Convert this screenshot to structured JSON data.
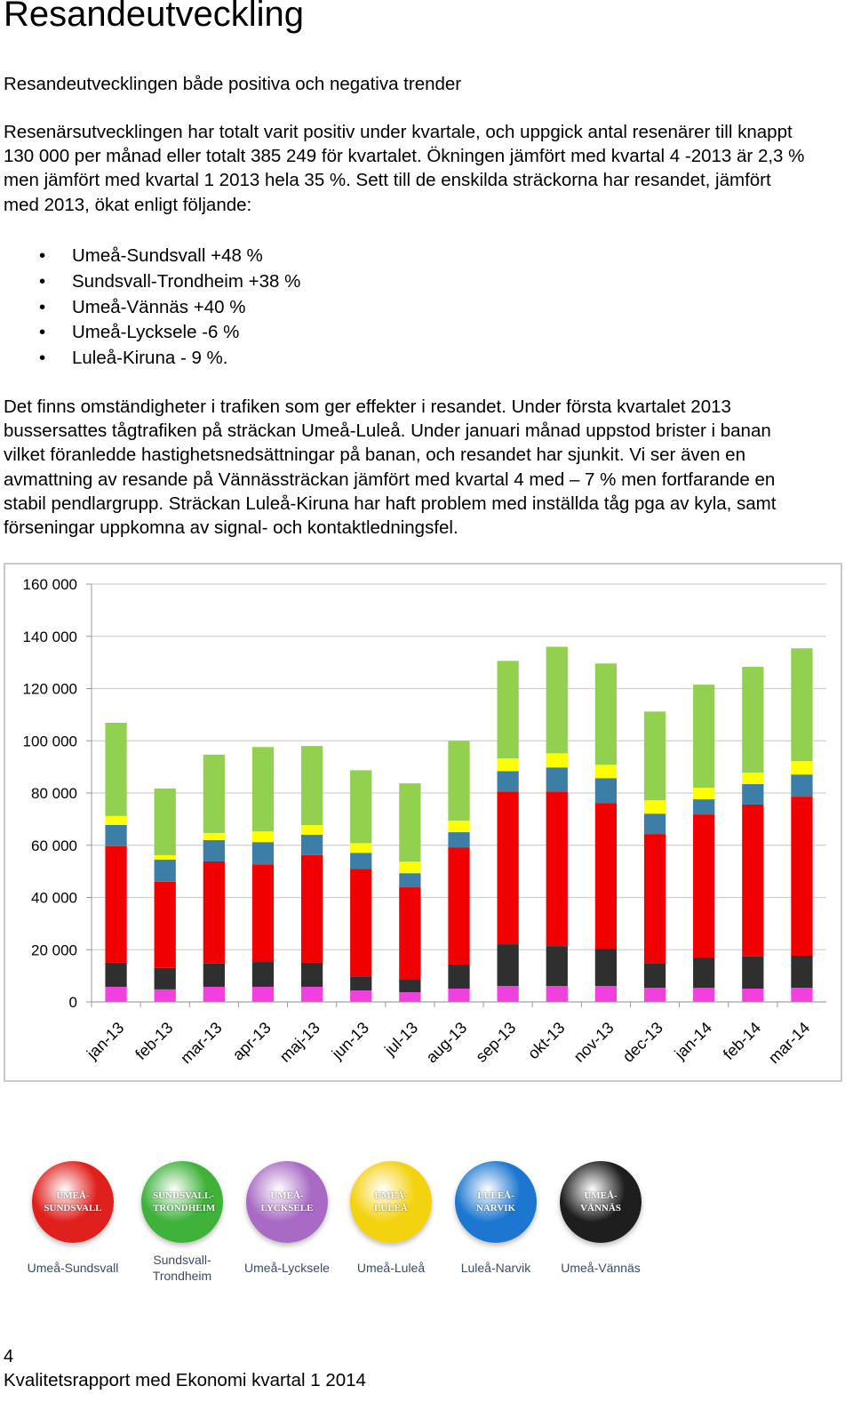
{
  "header": {
    "title": "Resandeutveckling",
    "subtitle": "Resandeutvecklingen både positiva och negativa trender"
  },
  "paragraphs": [
    "Resenärsutvecklingen har totalt varit positiv under kvartale, och  uppgick antal resenärer till knappt 130 000 per månad eller totalt 385 249 för kvartalet. Ökningen jämfört med kvartal 4 -2013 är 2,3 % men jämfört med kvartal 1 2013 hela 35 %. Sett till de enskilda sträckorna har resandet, jämfört med 2013, ökat enligt följande:",
    "Det finns omständigheter i trafiken som ger effekter i resandet. Under första kvartalet 2013 bussersattes tågtrafiken på sträckan Umeå-Luleå. Under januari månad uppstod brister i banan vilket föranledde hastighetsnedsättningar på banan, och resandet har sjunkit. Vi ser även en avmattning av resande på Vännässträckan jämfört med kvartal 4 med – 7 % men fortfarande en stabil pendlargrupp. Sträckan Luleå-Kiruna har haft problem med inställda tåg pga av kyla, samt förseningar uppkomna av signal- och kontaktledningsfel."
  ],
  "bullet_char": "•",
  "bullets": [
    "Umeå-Sundsvall +48 %",
    "Sundsvall-Trondheim +38 %",
    "Umeå-Vännäs +40 %",
    "Umeå-Lycksele -6 %",
    "Luleå-Kiruna - 9 %."
  ],
  "chart_data": {
    "type": "stacked_bar",
    "categories": [
      "jan-13",
      "feb-13",
      "mar-13",
      "apr-13",
      "maj-13",
      "jun-13",
      "jul-13",
      "aug-13",
      "sep-13",
      "okt-13",
      "nov-13",
      "dec-13",
      "jan-14",
      "feb-14",
      "mar-14"
    ],
    "series": [
      {
        "name": "Umeå-Lycksele",
        "color": "#f23fe0",
        "values": [
          5800,
          4800,
          5800,
          5800,
          5800,
          4400,
          3700,
          5100,
          6100,
          6100,
          6100,
          5400,
          5400,
          5100,
          5400
        ]
      },
      {
        "name": "Umeå-Vännäs",
        "color": "#2f2f2f",
        "values": [
          9200,
          8200,
          8900,
          9500,
          9200,
          5400,
          4800,
          9200,
          16000,
          15300,
          14300,
          9500,
          11600,
          12300,
          12300
        ]
      },
      {
        "name": "Umeå-Sundsvall",
        "color": "#f00000",
        "values": [
          44600,
          33000,
          39100,
          37400,
          41200,
          41200,
          35400,
          44900,
          58500,
          59200,
          55800,
          49400,
          54800,
          58200,
          60900
        ]
      },
      {
        "name": "Luleå-Narvik",
        "color": "#3c7ea6",
        "values": [
          8200,
          8500,
          8200,
          8500,
          7800,
          6100,
          5400,
          5800,
          7800,
          9200,
          9500,
          7800,
          5800,
          7800,
          8500
        ]
      },
      {
        "name": "Umeå-Luleå",
        "color": "#ffff00",
        "values": [
          3400,
          1700,
          2700,
          4100,
          3700,
          3700,
          4400,
          4400,
          4800,
          5400,
          5100,
          5100,
          4400,
          4400,
          5100
        ]
      },
      {
        "name": "Sundsvall-Trondheim",
        "color": "#92d050",
        "values": [
          35700,
          25500,
          30000,
          32300,
          30300,
          27900,
          30000,
          30600,
          37400,
          40800,
          38800,
          34000,
          39500,
          40500,
          43200
        ]
      }
    ],
    "ylim": [
      0,
      160000
    ],
    "yticks": [
      0,
      {
        "value": 20000,
        "label": "20 000"
      },
      {
        "value": 40000,
        "label": "40 000"
      },
      {
        "value": 60000,
        "label": "60 000"
      },
      {
        "value": 80000,
        "label": "80 000"
      },
      {
        "value": 100000,
        "label": "100 000"
      },
      {
        "value": 120000,
        "label": "120 000"
      },
      {
        "value": 140000,
        "label": "140 000"
      },
      {
        "value": 160000,
        "label": "160 000"
      }
    ],
    "grid": true
  },
  "route_icons": [
    {
      "badge": "UMEÅ-SUNDSVALL",
      "caption": "Umeå-Sundsvall",
      "color": "#e0201c"
    },
    {
      "badge": "SUNDSVALL-TRONDHEIM",
      "caption": "Sundsvall-Trondheim",
      "color": "#3fb23a"
    },
    {
      "badge": "UMEÅ-LYCKSELE",
      "caption": "Umeå-Lycksele",
      "color": "#a86ac4"
    },
    {
      "badge": "UMEÅ-LULEÅ",
      "caption": "Umeå-Luleå",
      "color": "#f3d20f"
    },
    {
      "badge": "LULEÅ-NARVIK",
      "caption": "Luleå-Narvik",
      "color": "#1d77d0"
    },
    {
      "badge": "UMEÅ-VÄNNÄS",
      "caption": "Umeå-Vännäs",
      "color": "#1e1e1e"
    }
  ],
  "footer": {
    "page_number": "4",
    "text": "Kvalitetsrapport med Ekonomi kvartal 1 2014"
  }
}
